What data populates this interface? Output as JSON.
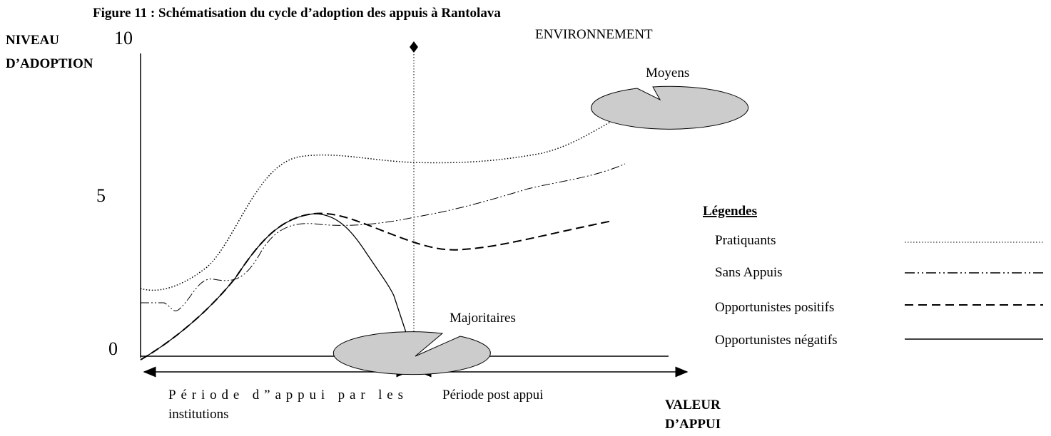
{
  "title": "Figure 11 : Schématisation du cycle d’adoption des appuis à Rantolava",
  "y_axis": {
    "label_line1": "NIVEAU",
    "label_line2": "D’ADOPTION",
    "ticks": [
      "10",
      "5",
      "0"
    ]
  },
  "x_axis": {
    "label_line1": "VALEUR",
    "label_line2": "D’APPUI"
  },
  "top_label": "ENVIRONNEMENT",
  "periods": {
    "first_line1": "Période d”appui par les",
    "first_line2": "institutions",
    "second": "Période post appui"
  },
  "callouts": [
    "Moyens",
    "Majoritaires"
  ],
  "legend": {
    "title": "Légendes",
    "items": [
      "Pratiquants",
      "Sans Appuis",
      "Opportunistes positifs",
      "Opportunistes négatifs"
    ]
  }
}
